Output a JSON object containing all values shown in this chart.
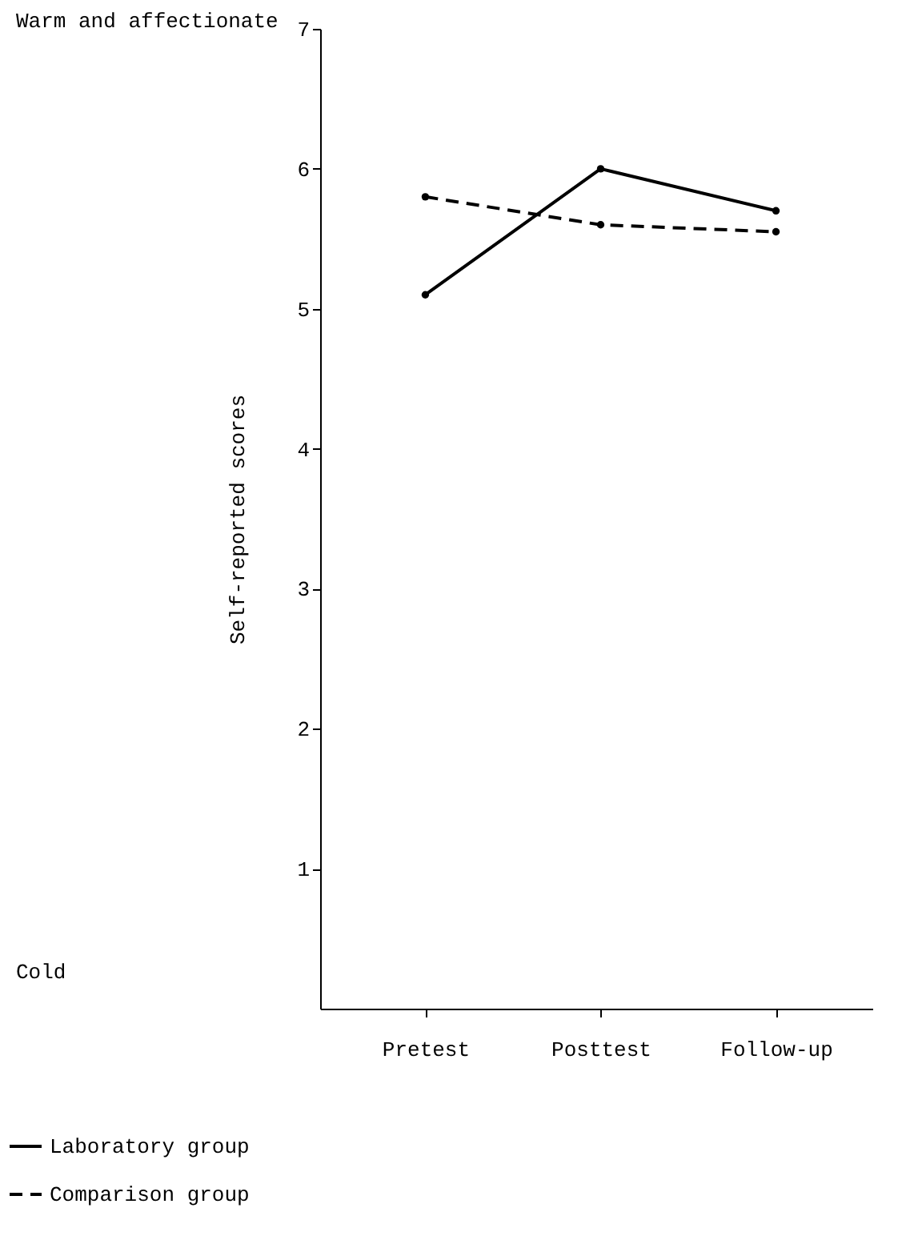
{
  "chart_data": {
    "type": "line",
    "ylabel": "Self-reported scores",
    "annotations": [
      "Warm and affectionate",
      "Cold"
    ],
    "categories": [
      "Pretest",
      "Posttest",
      "Follow-up"
    ],
    "series": [
      {
        "name": "Laboratory group",
        "color": "#000000",
        "values": [
          5.1,
          6.0,
          5.7
        ],
        "line_style": "solid"
      },
      {
        "name": "Comparison group",
        "color": "#000000",
        "values": [
          5.8,
          5.6,
          5.55
        ],
        "line_style": "dashed"
      }
    ],
    "ylim": [
      0,
      7
    ],
    "yticks": [
      1,
      2,
      3,
      4,
      5,
      6,
      7
    ],
    "marker": "circle",
    "legend": "bottom",
    "grid": false
  }
}
